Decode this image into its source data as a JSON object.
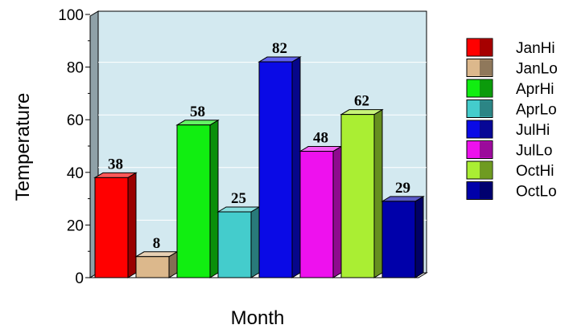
{
  "chart_data": {
    "type": "bar",
    "xlabel": "Month",
    "ylabel": "Temperature",
    "ylim": [
      0,
      100
    ],
    "yticks": [
      "0",
      "20",
      "40",
      "60",
      "80",
      "100"
    ],
    "grid": true,
    "legend_position": "right",
    "categories": [
      "JanHi",
      "JanLo",
      "AprHi",
      "AprLo",
      "JulHi",
      "JulLo",
      "OctHi",
      "OctLo"
    ],
    "values": [
      38,
      8,
      58,
      25,
      82,
      48,
      62,
      29
    ],
    "value_labels": [
      "38",
      "8",
      "58",
      "25",
      "82",
      "48",
      "62",
      "29"
    ],
    "colors": [
      "#ff0000",
      "#dcb88c",
      "#11ee11",
      "#44cccc",
      "#0a0ae6",
      "#ee11ee",
      "#aaee33",
      "#0000aa"
    ],
    "plot_background": "#d3e9f0"
  }
}
